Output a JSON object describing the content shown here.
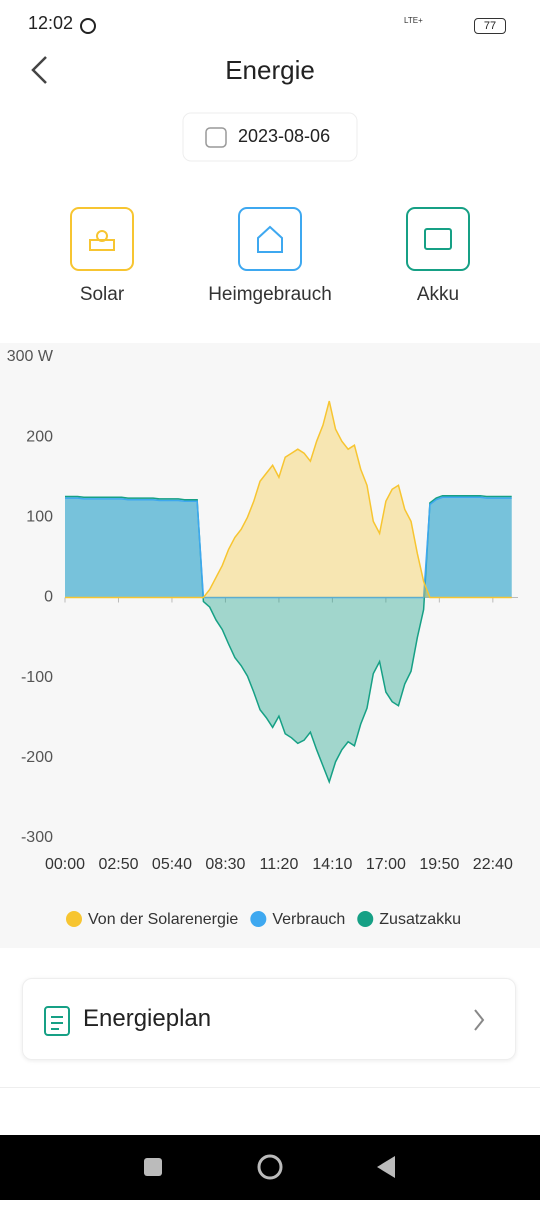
{
  "status": {
    "time": "12:02",
    "network": "LTE+",
    "battery": "77"
  },
  "header": {
    "title": "Energie"
  },
  "date": "2023-08-06",
  "tabs": [
    {
      "label": "Solar"
    },
    {
      "label": "Heimgebrauch"
    },
    {
      "label": "Akku"
    }
  ],
  "chart_data": {
    "type": "area",
    "x": [
      0,
      20,
      40,
      60,
      80,
      100,
      120,
      140,
      160,
      180,
      200,
      220,
      240,
      260,
      280,
      300,
      320,
      340,
      360,
      380,
      400,
      420,
      440,
      460,
      480,
      500,
      520,
      540,
      560,
      580,
      600,
      620,
      640,
      660,
      680,
      700,
      720,
      740,
      760,
      780,
      800,
      820,
      840,
      860,
      880,
      900,
      920,
      940,
      960,
      980,
      1000,
      1020,
      1040,
      1060,
      1080,
      1100,
      1120,
      1140,
      1160,
      1180,
      1200,
      1220,
      1240,
      1260,
      1280,
      1300,
      1320,
      1340,
      1360,
      1380,
      1400,
      1420
    ],
    "xlim": [
      0,
      1440
    ],
    "xticks": [
      {
        "value": 0,
        "label": "00:00"
      },
      {
        "value": 170,
        "label": "02:50"
      },
      {
        "value": 340,
        "label": "05:40"
      },
      {
        "value": 510,
        "label": "08:30"
      },
      {
        "value": 680,
        "label": "11:20"
      },
      {
        "value": 850,
        "label": "14:10"
      },
      {
        "value": 1020,
        "label": "17:00"
      },
      {
        "value": 1190,
        "label": "19:50"
      },
      {
        "value": 1360,
        "label": "22:40"
      }
    ],
    "ylim": [
      -300,
      300
    ],
    "yticks": [
      {
        "value": 300,
        "label": "300 W"
      },
      200,
      100,
      0,
      -100,
      -200,
      -300
    ],
    "series": [
      {
        "name": "Zusatzakku",
        "color": "#16a085",
        "values": [
          126,
          126,
          126,
          125,
          125,
          125,
          125,
          125,
          125,
          125,
          124,
          124,
          124,
          124,
          124,
          123,
          123,
          123,
          123,
          122,
          122,
          122,
          -5,
          -12,
          -28,
          -40,
          -58,
          -75,
          -85,
          -98,
          -118,
          -140,
          -150,
          -162,
          -148,
          -170,
          -175,
          -182,
          -178,
          -168,
          -190,
          -210,
          -230,
          -205,
          -190,
          -180,
          -185,
          -158,
          -138,
          -95,
          -80,
          -118,
          -130,
          -135,
          -108,
          -92,
          -50,
          -15,
          118,
          124,
          127,
          127,
          127,
          127,
          127,
          127,
          127,
          126,
          126,
          126,
          126,
          126
        ]
      },
      {
        "name": "Verbrauch",
        "color": "#3ea8f0",
        "values": [
          124,
          124,
          124,
          123,
          123,
          123,
          123,
          123,
          123,
          123,
          122,
          122,
          122,
          122,
          122,
          121,
          121,
          121,
          121,
          120,
          120,
          120,
          0,
          0,
          0,
          0,
          0,
          0,
          0,
          0,
          0,
          0,
          0,
          0,
          0,
          0,
          0,
          0,
          0,
          0,
          0,
          0,
          0,
          0,
          0,
          0,
          0,
          0,
          0,
          0,
          0,
          0,
          0,
          0,
          0,
          0,
          0,
          0,
          116,
          122,
          125,
          125,
          125,
          125,
          125,
          125,
          125,
          124,
          124,
          124,
          124,
          124
        ]
      },
      {
        "name": "Von der Solarenergie",
        "color": "#f7c531",
        "values": [
          0,
          0,
          0,
          0,
          0,
          0,
          0,
          0,
          0,
          0,
          0,
          0,
          0,
          0,
          0,
          0,
          0,
          0,
          0,
          0,
          0,
          0,
          0,
          10,
          25,
          40,
          60,
          75,
          85,
          100,
          120,
          145,
          155,
          165,
          150,
          175,
          180,
          185,
          180,
          170,
          195,
          215,
          245,
          210,
          195,
          185,
          190,
          160,
          140,
          95,
          80,
          120,
          135,
          140,
          110,
          95,
          55,
          20,
          0,
          0,
          0,
          0,
          0,
          0,
          0,
          0,
          0,
          0,
          0,
          0,
          0,
          0
        ]
      }
    ],
    "legend_order": [
      2,
      1,
      0
    ]
  },
  "card": {
    "label": "Energieplan"
  }
}
